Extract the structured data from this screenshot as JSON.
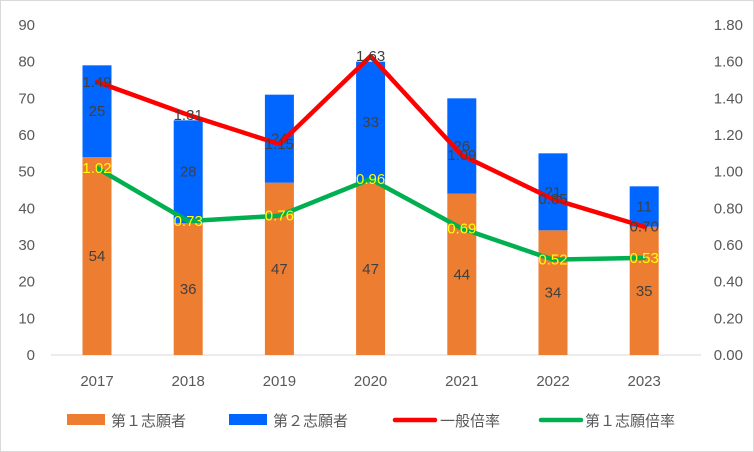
{
  "chart_data": {
    "type": "bar",
    "categories": [
      "2017",
      "2018",
      "2019",
      "2020",
      "2021",
      "2022",
      "2023"
    ],
    "bar_series": [
      {
        "name": "第１志願者",
        "color": "#ED7D31",
        "values": [
          54,
          36,
          47,
          47,
          44,
          34,
          35
        ]
      },
      {
        "name": "第２志願者",
        "color": "#0066FF",
        "values": [
          25,
          28,
          24,
          33,
          26,
          21,
          11
        ]
      }
    ],
    "line_series": [
      {
        "name": "一般倍率",
        "color": "#FF0000",
        "label_color": "#404040",
        "values": [
          1.49,
          1.31,
          1.15,
          1.63,
          1.09,
          0.85,
          0.7
        ],
        "labels": [
          "1.49",
          "1.31",
          "1.15",
          "1.63",
          "1.09",
          "0.85",
          "0.70"
        ]
      },
      {
        "name": "第１志願倍率",
        "color": "#00B050",
        "label_color": "#FFFF00",
        "values": [
          1.02,
          0.73,
          0.76,
          0.96,
          0.69,
          0.52,
          0.53
        ],
        "labels": [
          "1.02",
          "0.73",
          "0.76",
          "0.96",
          "0.69",
          "0.52",
          "0.53"
        ]
      }
    ],
    "y_left": {
      "min": 0,
      "max": 90,
      "ticks": [
        "0",
        "10",
        "20",
        "30",
        "40",
        "50",
        "60",
        "70",
        "80",
        "90"
      ]
    },
    "y_right": {
      "min": 0,
      "max": 1.8,
      "ticks": [
        "0.00",
        "0.20",
        "0.40",
        "0.60",
        "0.80",
        "1.00",
        "1.20",
        "1.40",
        "1.60",
        "1.80"
      ]
    },
    "grid": false,
    "legend": "bottom",
    "title": "",
    "xlabel": "",
    "ylabel": ""
  }
}
